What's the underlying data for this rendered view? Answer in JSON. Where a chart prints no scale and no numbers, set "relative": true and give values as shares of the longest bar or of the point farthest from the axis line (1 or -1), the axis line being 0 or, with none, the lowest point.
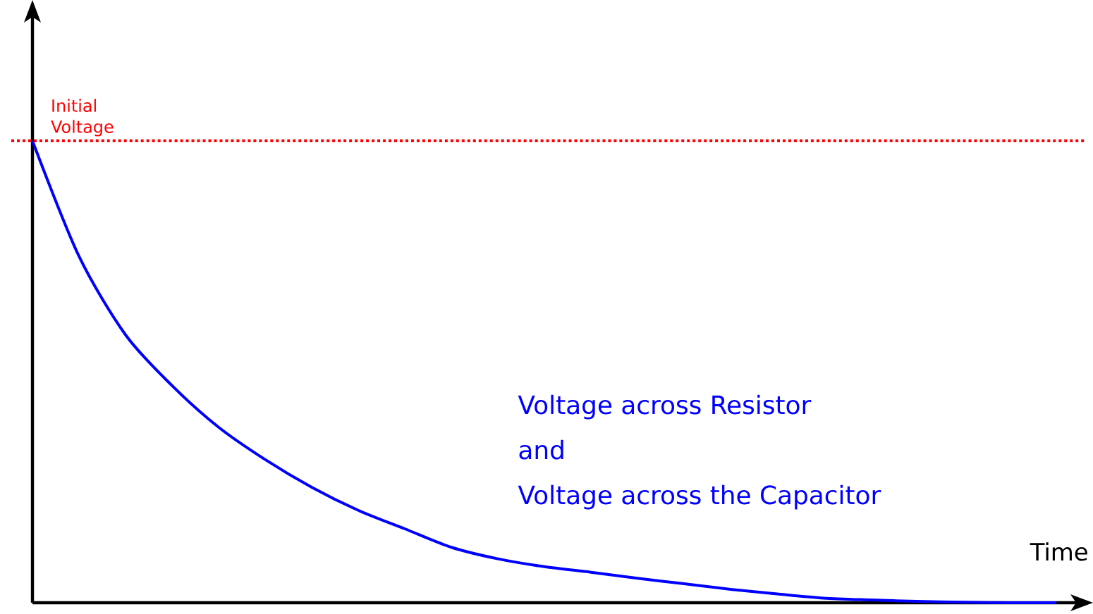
{
  "chart_data": {
    "type": "line",
    "relative": true,
    "xlabel": "Time",
    "categories": [
      null,
      null,
      null,
      null,
      null,
      null,
      null,
      null,
      null,
      null,
      null,
      null,
      null,
      null,
      null,
      null,
      null,
      null,
      null,
      null,
      null,
      null,
      null
    ],
    "series": [
      {
        "color": "#0000ff",
        "values": [
          1.0,
          0.75,
          0.58,
          0.47,
          0.38,
          0.31,
          0.25,
          0.2,
          0.16,
          0.12,
          0.095,
          0.078,
          0.066,
          0.053,
          0.041,
          0.029,
          0.019,
          0.01,
          0.006,
          0.003,
          0.001,
          0,
          0
        ]
      }
    ],
    "ref_lines": [
      {
        "axis": "y",
        "value": 1,
        "label": "Initial Voltage",
        "color": "#ff0000",
        "line_style": "dotted"
      }
    ],
    "annotations": [
      "Voltage across Resistor",
      "and",
      "Voltage across the Capacitor"
    ]
  }
}
